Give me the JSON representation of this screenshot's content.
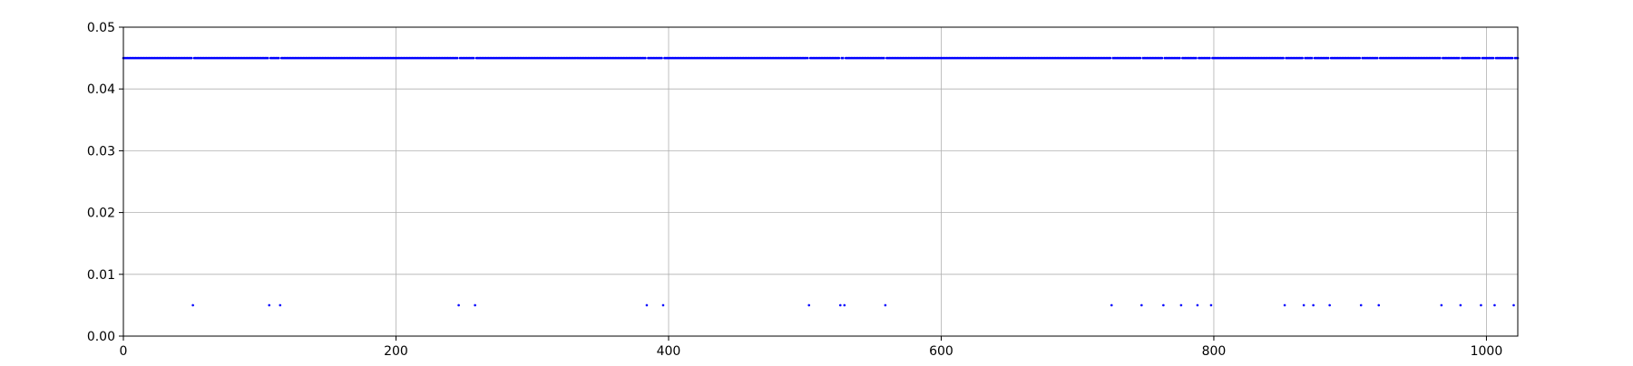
{
  "chart_data": {
    "type": "scatter",
    "title": "",
    "xlabel": "",
    "ylabel": "",
    "xlim": [
      0,
      1023
    ],
    "ylim": [
      0,
      0.05
    ],
    "x_ticks": [
      "0",
      "200",
      "400",
      "600",
      "800",
      "1000"
    ],
    "x_tick_values": [
      0,
      200,
      400,
      600,
      800,
      1000
    ],
    "y_ticks": [
      "0.00",
      "0.01",
      "0.02",
      "0.03",
      "0.04",
      "0.05"
    ],
    "y_tick_values": [
      0,
      0.01,
      0.02,
      0.03,
      0.04,
      0.05
    ],
    "grid": true,
    "marker_color": "#0000ff",
    "series": [
      {
        "count": 1024,
        "x_start": 0,
        "x_step": 1,
        "default_value": 0.045,
        "low_value": 0.005,
        "low_value_x": [
          51,
          107,
          115,
          246,
          258,
          384,
          396,
          503,
          526,
          529,
          559,
          725,
          747,
          763,
          776,
          788,
          798,
          852,
          866,
          873,
          885,
          908,
          921,
          967,
          981,
          996,
          1006,
          1020
        ]
      }
    ]
  }
}
